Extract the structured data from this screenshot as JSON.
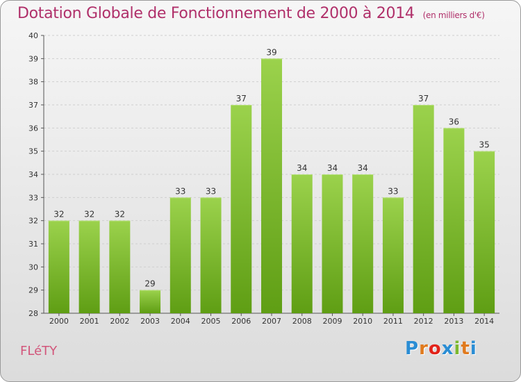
{
  "header": {
    "title": "Dotation Globale de Fonctionnement de 2000 à 2014",
    "unit_note": "(en milliers d'€)"
  },
  "footer": {
    "commune": "FLéTY",
    "logo_letters": [
      "P",
      "r",
      "o",
      "x",
      "i",
      "t",
      "i"
    ],
    "logo_colors": [
      "#2a8dd4",
      "#e07a1e",
      "#e2231a",
      "#2a8dd4",
      "#7cb82f",
      "#e07a1e",
      "#2a8dd4"
    ]
  },
  "colors": {
    "bar_top": "#9bd24c",
    "bar_bottom": "#5f9e14",
    "title": "#b0306a",
    "grid": "#cfcfcf",
    "axis_text": "#333333"
  },
  "chart_data": {
    "type": "bar",
    "title": "Dotation Globale de Fonctionnement de 2000 à 2014",
    "subtitle": "(en milliers d'€)",
    "xlabel": "",
    "ylabel": "",
    "categories": [
      "2000",
      "2001",
      "2002",
      "2003",
      "2004",
      "2005",
      "2006",
      "2007",
      "2008",
      "2009",
      "2010",
      "2011",
      "2012",
      "2013",
      "2014"
    ],
    "values": [
      32,
      32,
      32,
      29,
      33,
      33,
      37,
      39,
      34,
      34,
      34,
      33,
      37,
      36,
      35
    ],
    "ylim": [
      28,
      40
    ],
    "yticks": [
      28,
      29,
      30,
      31,
      32,
      33,
      34,
      35,
      36,
      37,
      38,
      39,
      40
    ],
    "grid": true,
    "data_labels": true
  }
}
